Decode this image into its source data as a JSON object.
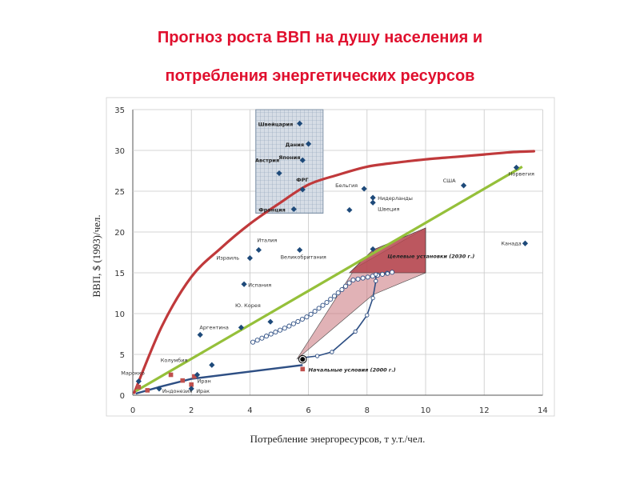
{
  "title_line1": "Прогноз роста ВВП на душу населения и",
  "title_line2": "потребления энергетических ресурсов",
  "chart_data": {
    "type": "scatter",
    "xlabel": "Потребление энергоресурсов, т у.т./чел.",
    "ylabel": "ВВП, $ (1993)/чел.",
    "xlim": [
      0,
      14
    ],
    "ylim": [
      0,
      35
    ],
    "xticks": [
      0,
      2,
      4,
      6,
      8,
      10,
      12,
      14
    ],
    "yticks": [
      0,
      5,
      10,
      15,
      20,
      25,
      30,
      35
    ],
    "grid": true,
    "countries": [
      {
        "label": "Швейцария",
        "x": 5.7,
        "y": 33.3
      },
      {
        "label": "Дания",
        "x": 6.0,
        "y": 30.8
      },
      {
        "label": "Япония",
        "x": 5.8,
        "y": 28.8
      },
      {
        "label": "Австрия",
        "x": 5.0,
        "y": 27.2
      },
      {
        "label": "ФРГ",
        "x": 5.8,
        "y": 25.2
      },
      {
        "label": "Франция",
        "x": 5.5,
        "y": 22.8
      },
      {
        "label": "Бельгия",
        "x": 7.9,
        "y": 25.3
      },
      {
        "label": "Нидерланды",
        "x": 8.2,
        "y": 24.2
      },
      {
        "label": "Швеция",
        "x": 8.2,
        "y": 23.6
      },
      {
        "label": "",
        "x": 7.4,
        "y": 22.7
      },
      {
        "label": "США",
        "x": 11.3,
        "y": 25.7
      },
      {
        "label": "Норвегия",
        "x": 13.1,
        "y": 27.9
      },
      {
        "label": "Канада",
        "x": 13.4,
        "y": 18.6
      },
      {
        "label": "Италия",
        "x": 4.3,
        "y": 17.8
      },
      {
        "label": "Великобритания",
        "x": 5.7,
        "y": 17.8
      },
      {
        "label": "",
        "x": 8.2,
        "y": 17.9
      },
      {
        "label": "Израиль",
        "x": 4.0,
        "y": 16.8
      },
      {
        "label": "Испания",
        "x": 3.8,
        "y": 13.6
      },
      {
        "label": "Ю. Корея",
        "x": 4.7,
        "y": 9.0
      },
      {
        "label": "Аргентина",
        "x": 3.7,
        "y": 8.3
      },
      {
        "label": "",
        "x": 2.3,
        "y": 7.4
      },
      {
        "label": "Колумбия",
        "x": 2.7,
        "y": 3.7
      },
      {
        "label": "Иран",
        "x": 2.2,
        "y": 2.5
      },
      {
        "label": "Марокко",
        "x": 0.2,
        "y": 1.7
      },
      {
        "label": "Индонезия",
        "x": 0.9,
        "y": 0.8
      },
      {
        "label": "Ирак",
        "x": 2.0,
        "y": 0.8
      }
    ],
    "low_income_points": [
      {
        "x": 0.2,
        "y": 1.0
      },
      {
        "x": 0.5,
        "y": 0.6
      },
      {
        "x": 1.3,
        "y": 2.5
      },
      {
        "x": 1.7,
        "y": 1.8
      },
      {
        "x": 2.0,
        "y": 1.3
      },
      {
        "x": 2.1,
        "y": 2.3
      },
      {
        "x": 5.8,
        "y": 3.2
      }
    ],
    "red_curve": [
      [
        0.05,
        0.3
      ],
      [
        1,
        8.5
      ],
      [
        2,
        14.5
      ],
      [
        3,
        18.0
      ],
      [
        4,
        21.0
      ],
      [
        5,
        23.5
      ],
      [
        6,
        25.8
      ],
      [
        7,
        27.0
      ],
      [
        8,
        28.0
      ],
      [
        9,
        28.5
      ],
      [
        10,
        28.9
      ],
      [
        11,
        29.2
      ],
      [
        12,
        29.5
      ],
      [
        13,
        29.8
      ],
      [
        13.7,
        29.9
      ]
    ],
    "green_line": [
      [
        0.1,
        0.5
      ],
      [
        13.3,
        28.0
      ]
    ],
    "blue_line": [
      [
        0.1,
        0.2
      ],
      [
        1.0,
        1.1
      ],
      [
        2.0,
        2.0
      ],
      [
        5.8,
        3.7
      ]
    ],
    "white_circles_path": [
      [
        4.1,
        6.5
      ],
      [
        4.6,
        7.3
      ],
      [
        5.3,
        8.4
      ],
      [
        6.0,
        9.7
      ],
      [
        6.6,
        11.3
      ],
      [
        7.1,
        12.8
      ],
      [
        7.5,
        14.1
      ],
      [
        8.5,
        14.8
      ],
      [
        8.9,
        15.1
      ]
    ],
    "blue_trajectory": [
      [
        5.8,
        4.6
      ],
      [
        6.3,
        4.8
      ],
      [
        6.8,
        5.3
      ],
      [
        7.6,
        7.8
      ],
      [
        8.0,
        9.8
      ],
      [
        8.2,
        11.9
      ],
      [
        8.3,
        14.0
      ],
      [
        8.3,
        14.8
      ],
      [
        8.7,
        14.9
      ]
    ],
    "forecast_region": [
      [
        5.6,
        4.4
      ],
      [
        7.6,
        15.6
      ],
      [
        10.0,
        20.5
      ],
      [
        10.0,
        15.0
      ],
      [
        8.2,
        12.3
      ]
    ],
    "region_2030": [
      [
        7.4,
        15.0
      ],
      [
        8.2,
        17.8
      ],
      [
        10.0,
        20.5
      ],
      [
        10.0,
        15.0
      ]
    ],
    "country_cluster_box": {
      "x0": 4.2,
      "x1": 6.5,
      "y0": 22.3,
      "y1": 35.0
    },
    "start_point": {
      "x": 5.8,
      "y": 4.4
    },
    "annotations": {
      "target": "Целевые установки (2030 г.)",
      "initial": "Начальные условия (2000 г.)"
    },
    "colors": {
      "red_curve": "#c0393b",
      "green_line": "#95c03a",
      "blue_line": "#2e4f84",
      "marker": "#1e4a7a",
      "forecast_fill": "#c8737a",
      "region_fill": "#b54650",
      "title": "#e0102e"
    }
  }
}
